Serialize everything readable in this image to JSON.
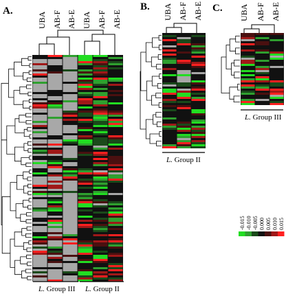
{
  "panels": [
    {
      "id": "A",
      "label": "A.",
      "columns": [
        "UBA",
        "AB-F",
        "AB-E",
        "UBA",
        "AB-F",
        "AB-E"
      ],
      "groups": [
        {
          "italic": "L.",
          "rest": " Group III"
        },
        {
          "italic": "L.",
          "rest": " Group II"
        }
      ]
    },
    {
      "id": "B",
      "label": "B.",
      "columns": [
        "UBA",
        "AB-F",
        "AB-E"
      ],
      "groups": [
        {
          "italic": "L.",
          "rest": " Group II"
        }
      ]
    },
    {
      "id": "C",
      "label": "C.",
      "columns": [
        "UBA",
        "AB-F",
        "AB-E"
      ],
      "groups": [
        {
          "italic": "L.",
          "rest": " Group III"
        }
      ]
    }
  ],
  "color_scale": {
    "ticks": [
      "-0.015",
      "-0.010",
      "-0.005",
      "0.000",
      "0.005",
      "0.010",
      "0.015"
    ],
    "colors": [
      "#22dd22",
      "#2fa02f",
      "#1a4a1a",
      "#111111",
      "#4a1010",
      "#a01818",
      "#ff2020"
    ],
    "missing_color": "#a8a8a8"
  }
}
